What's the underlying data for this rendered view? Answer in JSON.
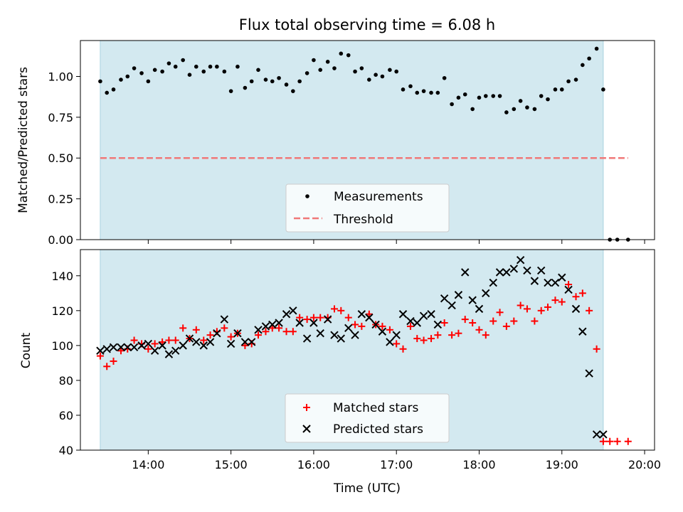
{
  "chart_data": [
    {
      "type": "scatter",
      "title": "Flux total observing time = 6.08 h",
      "ylabel": "Matched/Predicted stars",
      "ylim": [
        0,
        1.22
      ],
      "xlim": [
        13.18,
        20.12
      ],
      "yticks": [
        0,
        0.25,
        0.5,
        0.75,
        1.0
      ],
      "ytick_labels": [
        "0.00",
        "0.25",
        "0.50",
        "0.75",
        "1.00"
      ],
      "observing_window": [
        13.42,
        19.5
      ],
      "colors": {
        "window": "#d3e9f0",
        "measurements": "#000000",
        "threshold": "#f07878"
      },
      "legend": {
        "placement": "lower-center",
        "entries": [
          "Measurements",
          "Threshold"
        ]
      },
      "threshold": {
        "value": 0.5,
        "x": [
          13.42,
          19.8
        ]
      },
      "series": [
        {
          "name": "Measurements",
          "x": [
            13.42,
            13.5,
            13.58,
            13.67,
            13.75,
            13.83,
            13.92,
            14.0,
            14.08,
            14.17,
            14.25,
            14.33,
            14.42,
            14.5,
            14.58,
            14.67,
            14.75,
            14.83,
            14.92,
            15.0,
            15.08,
            15.17,
            15.25,
            15.33,
            15.42,
            15.5,
            15.58,
            15.67,
            15.75,
            15.83,
            15.92,
            16.0,
            16.08,
            16.17,
            16.25,
            16.33,
            16.42,
            16.5,
            16.58,
            16.67,
            16.75,
            16.83,
            16.92,
            17.0,
            17.08,
            17.17,
            17.25,
            17.33,
            17.42,
            17.5,
            17.58,
            17.67,
            17.75,
            17.83,
            17.92,
            18.0,
            18.08,
            18.17,
            18.25,
            18.33,
            18.42,
            18.5,
            18.58,
            18.67,
            18.75,
            18.83,
            18.92,
            19.0,
            19.08,
            19.17,
            19.25,
            19.33,
            19.42,
            19.5,
            19.58,
            19.67,
            19.8
          ],
          "y": [
            0.97,
            0.9,
            0.92,
            0.98,
            1.0,
            1.05,
            1.02,
            0.97,
            1.04,
            1.03,
            1.08,
            1.06,
            1.1,
            1.01,
            1.06,
            1.03,
            1.06,
            1.06,
            1.03,
            0.91,
            1.06,
            0.93,
            0.97,
            1.04,
            0.98,
            0.97,
            0.99,
            0.95,
            0.91,
            0.97,
            1.02,
            1.1,
            1.04,
            1.09,
            1.05,
            1.14,
            1.13,
            1.03,
            1.05,
            0.98,
            1.01,
            1.0,
            1.04,
            1.03,
            0.92,
            0.94,
            0.9,
            0.91,
            0.9,
            0.9,
            0.99,
            0.83,
            0.87,
            0.89,
            0.8,
            0.87,
            0.88,
            0.88,
            0.88,
            0.78,
            0.8,
            0.85,
            0.81,
            0.8,
            0.88,
            0.86,
            0.92,
            0.92,
            0.97,
            0.98,
            1.07,
            1.11,
            1.17,
            0.92,
            0.0,
            0.0,
            0.0
          ]
        }
      ]
    },
    {
      "type": "scatter",
      "xlabel": "Time (UTC)",
      "ylabel": "Count",
      "ylim": [
        40,
        155
      ],
      "xlim": [
        13.18,
        20.12
      ],
      "yticks": [
        40,
        60,
        80,
        100,
        120,
        140
      ],
      "xticks": [
        14,
        15,
        16,
        17,
        18,
        19,
        20
      ],
      "xtick_labels": [
        "14:00",
        "15:00",
        "16:00",
        "17:00",
        "18:00",
        "19:00",
        "20:00"
      ],
      "observing_window": [
        13.42,
        19.5
      ],
      "colors": {
        "window": "#d3e9f0",
        "matched": "#ff0000",
        "predicted": "#000000"
      },
      "legend": {
        "placement": "lower-center",
        "entries": [
          "Matched stars",
          "Predicted stars"
        ]
      },
      "series": [
        {
          "name": "Matched stars",
          "x": [
            13.42,
            13.5,
            13.58,
            13.67,
            13.75,
            13.83,
            13.92,
            14.0,
            14.08,
            14.17,
            14.25,
            14.33,
            14.42,
            14.5,
            14.58,
            14.67,
            14.75,
            14.83,
            14.92,
            15.0,
            15.08,
            15.17,
            15.25,
            15.33,
            15.42,
            15.5,
            15.58,
            15.67,
            15.75,
            15.83,
            15.92,
            16.0,
            16.08,
            16.17,
            16.25,
            16.33,
            16.42,
            16.5,
            16.58,
            16.67,
            16.75,
            16.83,
            16.92,
            17.0,
            17.08,
            17.17,
            17.25,
            17.33,
            17.42,
            17.5,
            17.58,
            17.67,
            17.75,
            17.83,
            17.92,
            18.0,
            18.08,
            18.17,
            18.25,
            18.33,
            18.42,
            18.5,
            18.58,
            18.67,
            18.75,
            18.83,
            18.92,
            19.0,
            19.08,
            19.17,
            19.25,
            19.33,
            19.42,
            19.5,
            19.58,
            19.67,
            19.8
          ],
          "y": [
            94,
            88,
            91,
            97,
            98,
            103,
            101,
            98,
            101,
            102,
            103,
            103,
            110,
            104,
            109,
            103,
            106,
            108,
            110,
            105,
            107,
            100,
            101,
            106,
            108,
            110,
            110,
            108,
            108,
            116,
            115,
            116,
            116,
            116,
            121,
            120,
            116,
            112,
            111,
            118,
            112,
            111,
            109,
            101,
            98,
            111,
            104,
            103,
            104,
            106,
            113,
            106,
            107,
            115,
            113,
            109,
            106,
            114,
            119,
            111,
            114,
            123,
            121,
            114,
            120,
            122,
            126,
            125,
            135,
            128,
            130,
            120,
            98,
            45,
            45,
            45,
            45
          ]
        },
        {
          "name": "Predicted stars",
          "x": [
            13.42,
            13.5,
            13.58,
            13.67,
            13.75,
            13.83,
            13.92,
            14.0,
            14.08,
            14.17,
            14.25,
            14.33,
            14.42,
            14.5,
            14.58,
            14.67,
            14.75,
            14.83,
            14.92,
            15.0,
            15.08,
            15.17,
            15.25,
            15.33,
            15.42,
            15.5,
            15.58,
            15.67,
            15.75,
            15.83,
            15.92,
            16.0,
            16.08,
            16.17,
            16.25,
            16.33,
            16.42,
            16.5,
            16.58,
            16.67,
            16.75,
            16.83,
            16.92,
            17.0,
            17.08,
            17.17,
            17.25,
            17.33,
            17.42,
            17.5,
            17.58,
            17.67,
            17.75,
            17.83,
            17.92,
            18.0,
            18.08,
            18.17,
            18.25,
            18.33,
            18.42,
            18.5,
            18.58,
            18.67,
            18.75,
            18.83,
            18.92,
            19.0,
            19.08,
            19.17,
            19.25,
            19.33,
            19.42,
            19.5
          ],
          "y": [
            97,
            98,
            99,
            99,
            99,
            99,
            100,
            101,
            97,
            100,
            95,
            97,
            100,
            104,
            102,
            100,
            102,
            107,
            115,
            101,
            107,
            102,
            102,
            109,
            111,
            112,
            113,
            118,
            120,
            113,
            104,
            113,
            107,
            115,
            106,
            104,
            110,
            106,
            118,
            116,
            112,
            108,
            102,
            106,
            118,
            114,
            113,
            117,
            118,
            112,
            127,
            123,
            129,
            142,
            126,
            121,
            130,
            136,
            142,
            142,
            144,
            149,
            143,
            137,
            143,
            136,
            136,
            139,
            132,
            121,
            108,
            84,
            49,
            49
          ]
        }
      ]
    }
  ]
}
